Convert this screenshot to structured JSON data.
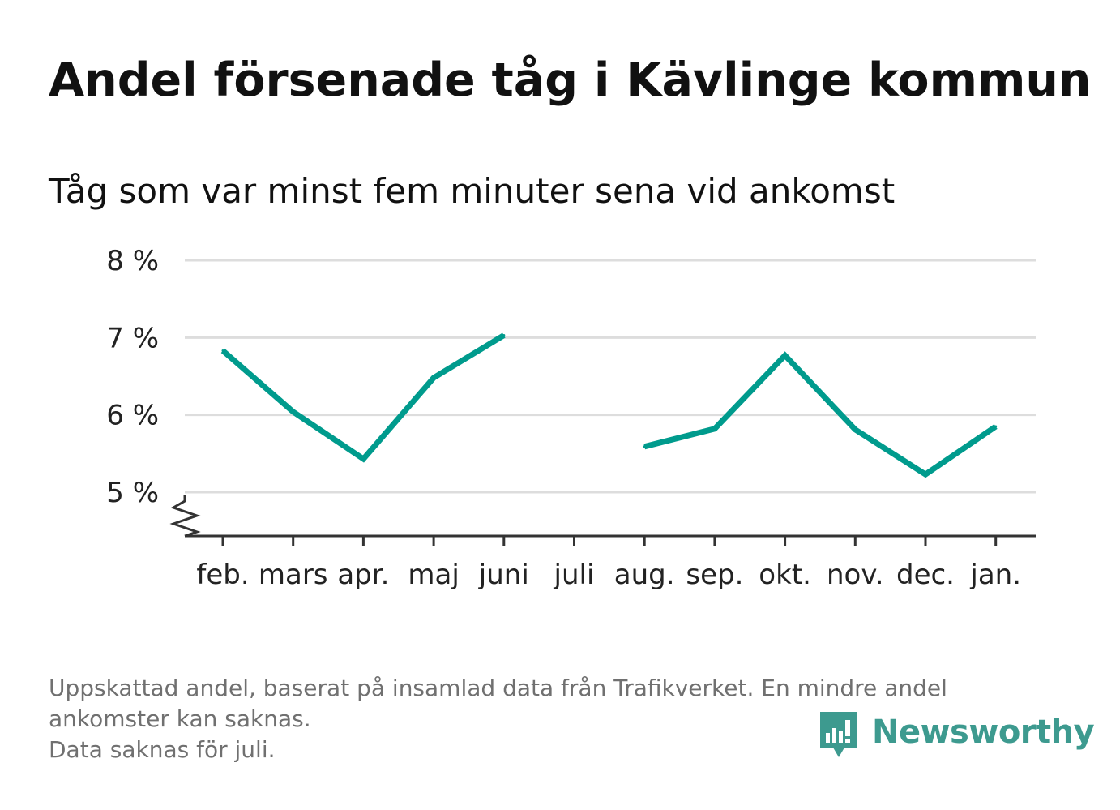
{
  "title": "Andel försenade tåg i Kävlinge kommun",
  "subtitle": "Tåg som var minst fem minuter sena vid ankomst",
  "footnote": {
    "line1": "Uppskattad andel, baserat på insamlad data från Trafikverket. En mindre andel",
    "line2": "ankomster kan saknas.",
    "line3": "Data saknas för juli."
  },
  "brand": {
    "name": "Newsworthy",
    "icon": "newsworthy-bar-chart-logo-icon",
    "color": "#3d9a8f"
  },
  "chart_data": {
    "type": "line",
    "categories": [
      "feb.",
      "mars",
      "apr.",
      "maj",
      "juni",
      "juli",
      "aug.",
      "sep.",
      "okt.",
      "nov.",
      "dec.",
      "jan."
    ],
    "series": [
      {
        "values": [
          6.83,
          6.04,
          5.43,
          6.48,
          7.03,
          null,
          5.59,
          5.82,
          6.77,
          5.81,
          5.23,
          5.85
        ],
        "color": "#009b8d"
      }
    ],
    "yticks": [
      5,
      6,
      7,
      8
    ],
    "ytick_labels": [
      "5 %",
      "6 %",
      "7 %",
      "8 %"
    ],
    "ylim": [
      4.45,
      8
    ],
    "y_axis_break": true,
    "grid": true,
    "xlabel": "",
    "ylabel": "",
    "legend": "none"
  }
}
